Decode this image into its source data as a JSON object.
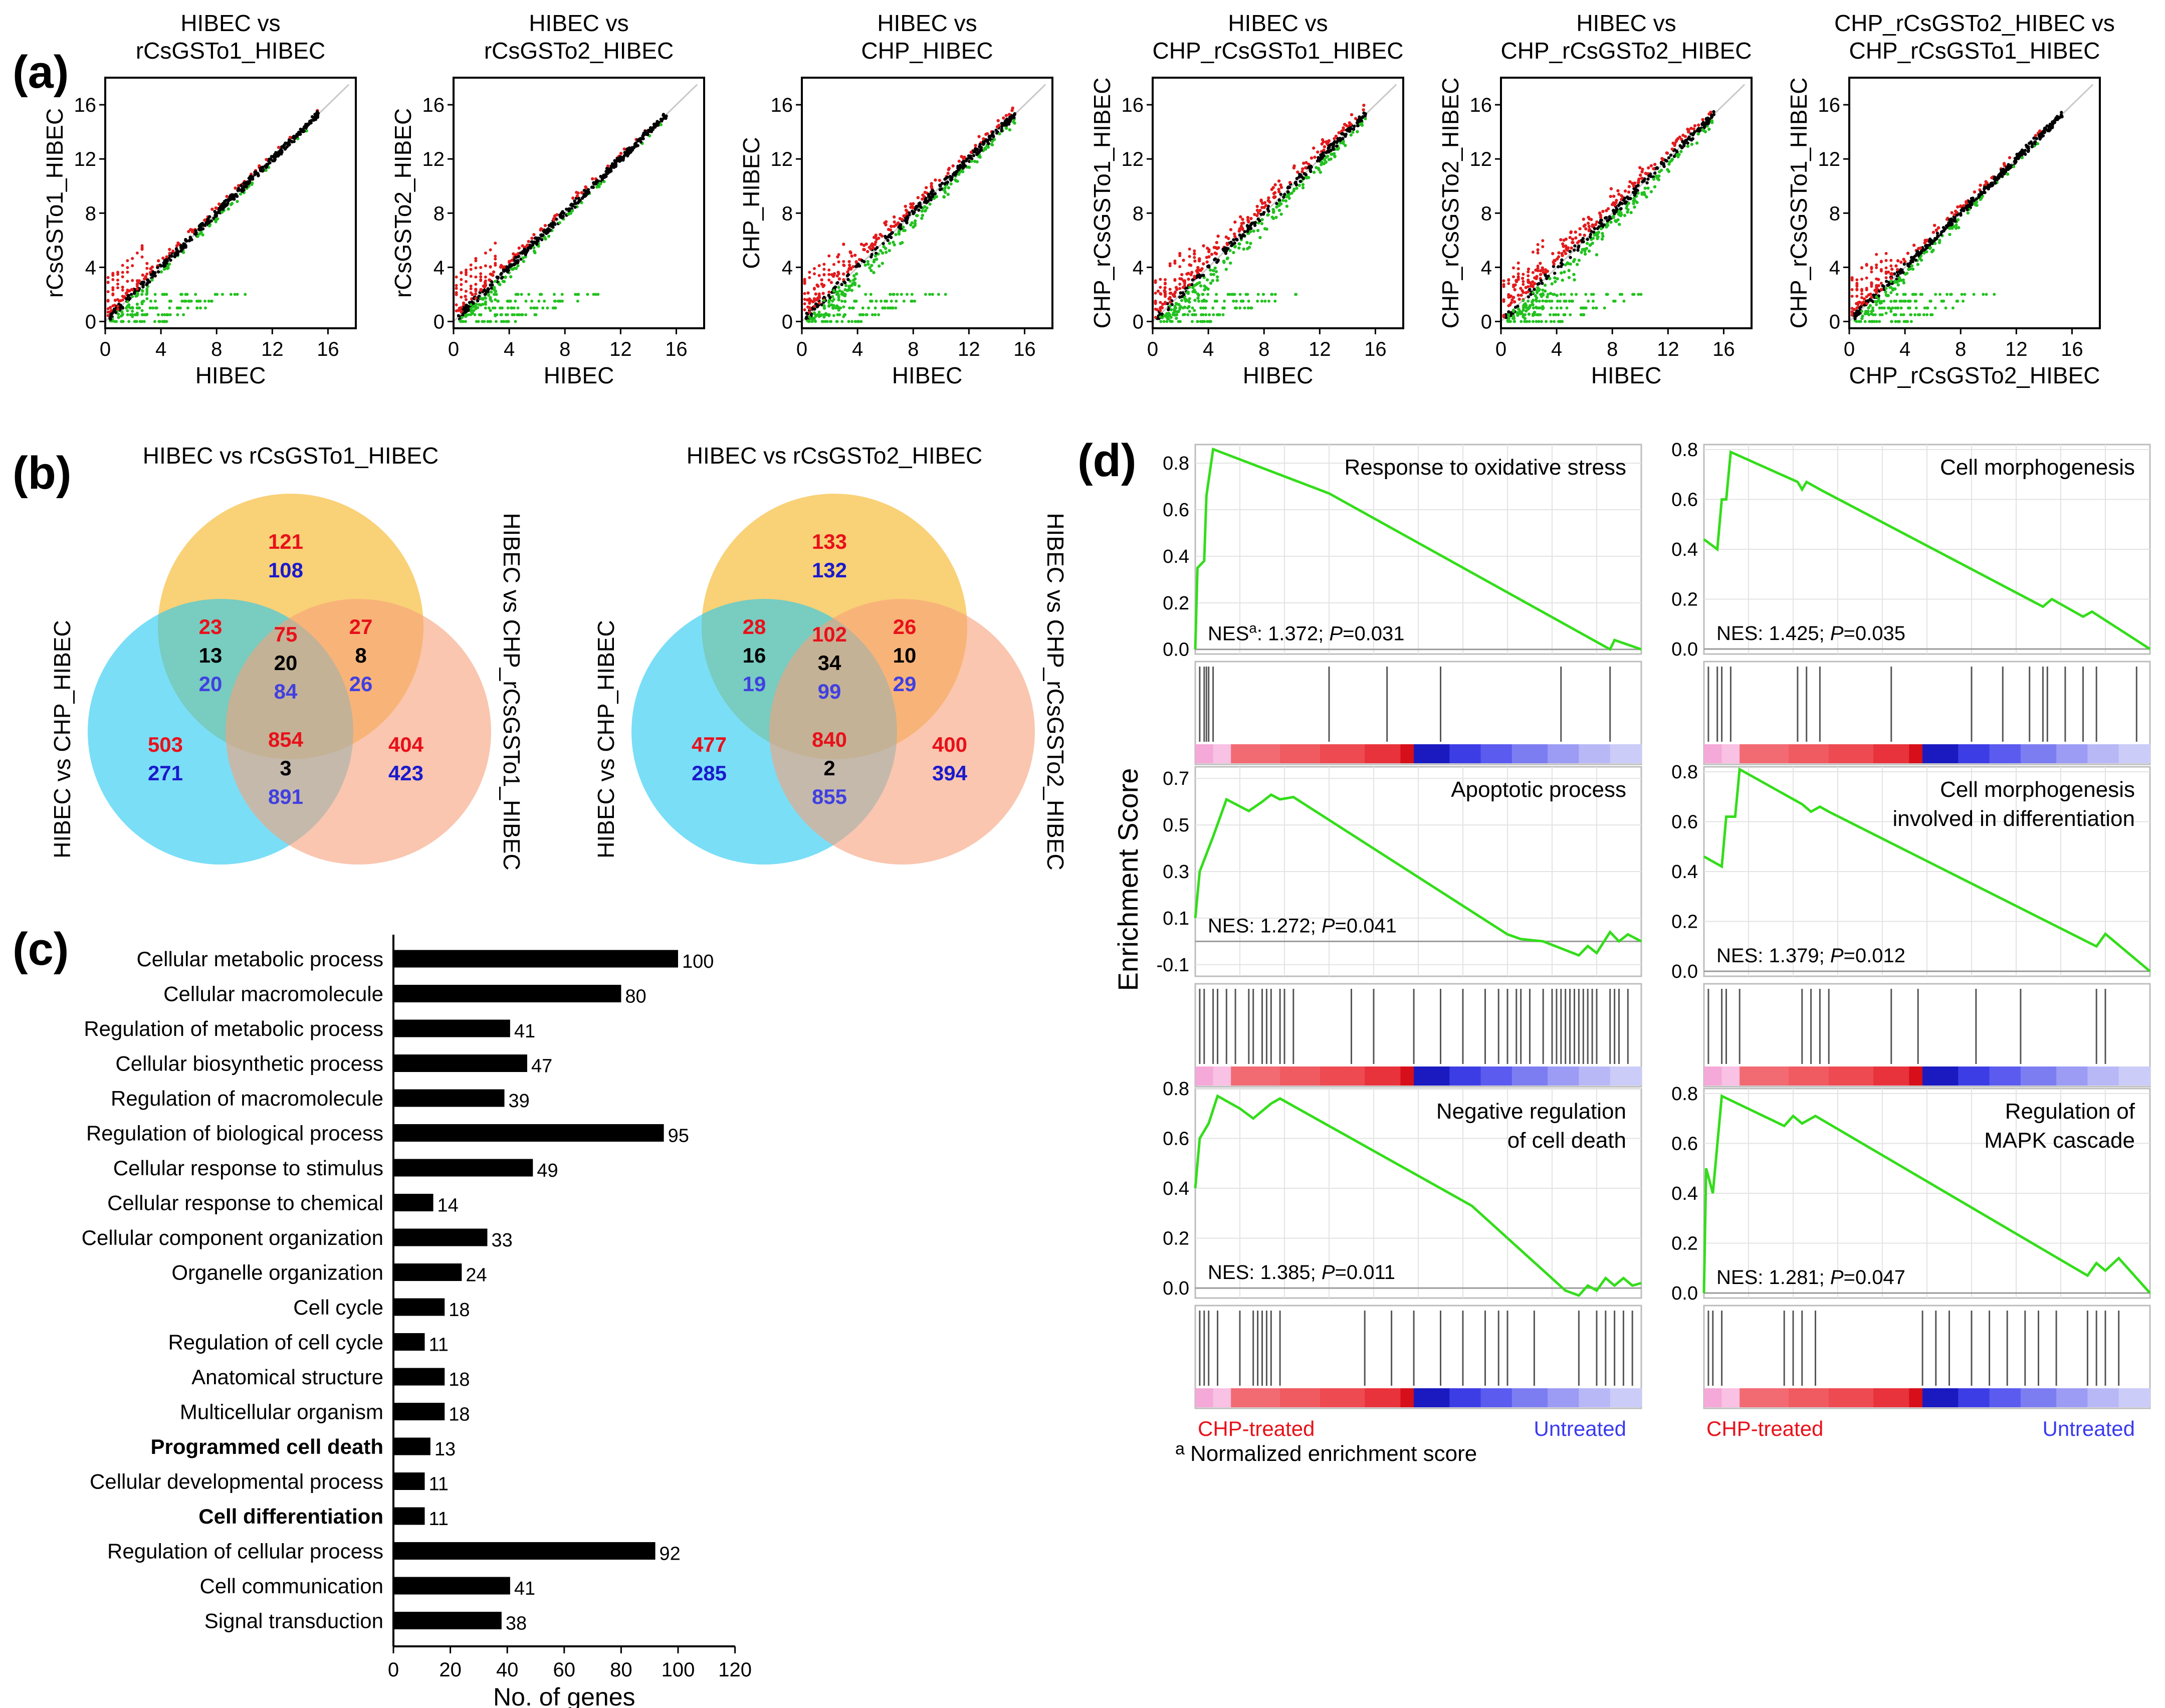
{
  "panel_labels": {
    "a": "(a)",
    "b": "(b)",
    "c": "(c)",
    "d": "(d)"
  },
  "colors": {
    "up": "#e31a1c",
    "down": "#22c11f",
    "black": "#000000",
    "gsea_line": "#33dd1a",
    "venn_a": "#f7c14a",
    "venn_b": "#22c8f2",
    "venn_c": "#f7a07a",
    "count_red": "#e8111a",
    "count_blue": "#1a1acc",
    "count_blue2": "#4040e0",
    "label_red": "#e8111a",
    "label_blue": "#3a3af0"
  },
  "scatter": {
    "panels": [
      {
        "title": [
          "HIBEC vs",
          "rCsGSTo1_HIBEC"
        ],
        "xlabel": "HIBEC",
        "ylabel": "rCsGSTo1_HIBEC",
        "spread": 0.55
      },
      {
        "title": [
          "HIBEC vs",
          "rCsGSTo2_HIBEC"
        ],
        "xlabel": "HIBEC",
        "ylabel": "rCsGSTo2_HIBEC",
        "spread": 0.6
      },
      {
        "title": [
          "HIBEC vs",
          "CHP_HIBEC"
        ],
        "xlabel": "HIBEC",
        "ylabel": "CHP_HIBEC",
        "spread": 1.3
      },
      {
        "title": [
          "HIBEC vs",
          "CHP_rCsGSTo1_HIBEC"
        ],
        "xlabel": "HIBEC",
        "ylabel": "CHP_rCsGSTo1_HIBEC",
        "spread": 1.5
      },
      {
        "title": [
          "HIBEC vs",
          "CHP_rCsGSTo2_HIBEC"
        ],
        "xlabel": "HIBEC",
        "ylabel": "CHP_rCsGSTo2_HIBEC",
        "spread": 1.5
      },
      {
        "title": [
          "CHP_rCsGSTo2_HIBEC vs",
          "CHP_rCsGSTo1_HIBEC"
        ],
        "xlabel": "CHP_rCsGSTo2_HIBEC",
        "ylabel": "CHP_rCsGSTo1_HIBEC",
        "spread": 0.7
      }
    ]
  },
  "venn": [
    {
      "top_label": "HIBEC vs rCsGSTo1_HIBEC",
      "left_label": "HIBEC vs CHP_HIBEC",
      "right_label": "HIBEC vs CHP_rCsGSTo1_HIBEC",
      "regions": {
        "a_only": [
          "121",
          "108"
        ],
        "ab": [
          "23",
          "13",
          "20"
        ],
        "ac": [
          "27",
          "8",
          "26"
        ],
        "abc": [
          "75",
          "20",
          "84"
        ],
        "b_only": [
          "503",
          "271"
        ],
        "c_only": [
          "404",
          "423"
        ],
        "bc": [
          "854",
          "3",
          "891"
        ]
      }
    },
    {
      "top_label": "HIBEC vs rCsGSTo2_HIBEC",
      "left_label": "HIBEC vs CHP_HIBEC",
      "right_label": "HIBEC vs CHP_rCsGSTo2_HIBEC",
      "regions": {
        "a_only": [
          "133",
          "132"
        ],
        "ab": [
          "28",
          "16",
          "19"
        ],
        "ac": [
          "26",
          "10",
          "29"
        ],
        "abc": [
          "102",
          "34",
          "99"
        ],
        "b_only": [
          "477",
          "285"
        ],
        "c_only": [
          "400",
          "394"
        ],
        "bc": [
          "840",
          "2",
          "855"
        ]
      }
    }
  ],
  "chart_data": [
    {
      "type": "scatter",
      "title": "HIBEC vs rCsGSTo1_HIBEC",
      "xlabel": "HIBEC",
      "ylabel": "rCsGSTo1_HIBEC",
      "xlim": [
        0,
        18
      ],
      "ylim": [
        -0.5,
        18
      ],
      "x_ticks": [
        "0",
        "4",
        "8",
        "12",
        "16"
      ],
      "y_ticks": [
        "0",
        "4",
        "8",
        "12",
        "16"
      ]
    },
    {
      "type": "bar",
      "orientation": "horizontal",
      "xlabel": "No. of genes",
      "xlim": [
        0,
        120
      ],
      "x_ticks": [
        "0",
        "20",
        "40",
        "60",
        "80",
        "100",
        "120"
      ],
      "categories": [
        "Cellular metabolic process",
        "Cellular macromolecule",
        "Regulation of metabolic process",
        "Cellular biosynthetic process",
        "Regulation of macromolecule",
        "Regulation of biological process",
        "Cellular response to stimulus",
        "Cellular response to chemical",
        "Cellular component organization",
        "Organelle organization",
        "Cell cycle",
        "Regulation of cell cycle",
        "Anatomical structure",
        "Multicellular organism",
        "Programmed cell death",
        "Cellular developmental process",
        "Cell differentiation",
        "Regulation of cellular process",
        "Cell communication",
        "Signal transduction"
      ],
      "values": [
        100,
        80,
        41,
        47,
        39,
        95,
        49,
        14,
        33,
        24,
        18,
        11,
        18,
        18,
        13,
        11,
        11,
        92,
        41,
        38
      ],
      "bold": [
        false,
        false,
        false,
        false,
        false,
        false,
        false,
        false,
        false,
        false,
        false,
        false,
        false,
        false,
        true,
        false,
        true,
        false,
        false,
        false
      ],
      "value_labels": [
        "100",
        "80",
        "41",
        "47",
        "39",
        "95",
        "49",
        "14",
        "33",
        "24",
        "18",
        "11",
        "18",
        "18",
        "13",
        "11",
        "11",
        "92",
        "41",
        "38"
      ]
    },
    {
      "type": "line",
      "subtype": "gsea",
      "ylabel": "Enrichment Score",
      "left_label": "CHP-treated",
      "right_label": "Untreated",
      "footnote": "Normalized enrichment score",
      "footnote_mark": "a",
      "panels": [
        {
          "title": [
            "Response to oxidative stress"
          ],
          "nes_prefix": "NES",
          "nes_sup": "a",
          "nes_value": ": 1.372; ",
          "p_label": "P",
          "p_value": "=0.031",
          "ylim": [
            -0.02,
            0.88
          ],
          "y_ticks": [
            "0.0",
            "0.2",
            "0.4",
            "0.6",
            "0.8"
          ],
          "y_tick_vals": [
            0,
            0.2,
            0.4,
            0.6,
            0.8
          ],
          "curve": [
            [
              0,
              0
            ],
            [
              0.005,
              0.35
            ],
            [
              0.02,
              0.38
            ],
            [
              0.025,
              0.66
            ],
            [
              0.04,
              0.86
            ],
            [
              0.3,
              0.67
            ],
            [
              0.93,
              0.0
            ],
            [
              0.94,
              0.04
            ],
            [
              1,
              0.0
            ]
          ],
          "hits": [
            0.01,
            0.02,
            0.025,
            0.03,
            0.04,
            0.3,
            0.43,
            0.55,
            0.82,
            0.93
          ]
        },
        {
          "title": [
            "Cell morphogenesis"
          ],
          "nes_prefix": "NES",
          "nes_sup": "",
          "nes_value": ": 1.425; ",
          "p_label": "P",
          "p_value": "=0.035",
          "ylim": [
            -0.02,
            0.82
          ],
          "y_ticks": [
            "0.0",
            "0.2",
            "0.4",
            "0.6",
            "0.8"
          ],
          "y_tick_vals": [
            0,
            0.2,
            0.4,
            0.6,
            0.8
          ],
          "curve": [
            [
              0,
              0.44
            ],
            [
              0.03,
              0.4
            ],
            [
              0.04,
              0.6
            ],
            [
              0.05,
              0.6
            ],
            [
              0.06,
              0.79
            ],
            [
              0.21,
              0.67
            ],
            [
              0.22,
              0.64
            ],
            [
              0.23,
              0.67
            ],
            [
              0.26,
              0.64
            ],
            [
              0.76,
              0.17
            ],
            [
              0.78,
              0.2
            ],
            [
              0.85,
              0.13
            ],
            [
              0.87,
              0.15
            ],
            [
              1,
              0.0
            ]
          ],
          "hits": [
            0.01,
            0.03,
            0.04,
            0.06,
            0.21,
            0.23,
            0.26,
            0.42,
            0.6,
            0.67,
            0.73,
            0.76,
            0.77,
            0.81,
            0.85,
            0.88,
            0.97
          ]
        },
        {
          "title": [
            "Apoptotic process"
          ],
          "nes_prefix": "NES",
          "nes_sup": "",
          "nes_value": ": 1.272; ",
          "p_label": "P",
          "p_value": "=0.041",
          "ylim": [
            -0.15,
            0.75
          ],
          "y_ticks": [
            "-0.1",
            "0.1",
            "0.3",
            "0.5",
            "0.7"
          ],
          "y_tick_vals": [
            -0.1,
            0.1,
            0.3,
            0.5,
            0.7
          ],
          "curve": [
            [
              0,
              0.1
            ],
            [
              0.01,
              0.3
            ],
            [
              0.04,
              0.45
            ],
            [
              0.07,
              0.61
            ],
            [
              0.12,
              0.56
            ],
            [
              0.15,
              0.6
            ],
            [
              0.17,
              0.63
            ],
            [
              0.19,
              0.61
            ],
            [
              0.22,
              0.62
            ],
            [
              0.7,
              0.03
            ],
            [
              0.73,
              0.01
            ],
            [
              0.78,
              0.0
            ],
            [
              0.86,
              -0.06
            ],
            [
              0.88,
              -0.02
            ],
            [
              0.9,
              -0.05
            ],
            [
              0.93,
              0.04
            ],
            [
              0.95,
              0.0
            ],
            [
              0.97,
              0.03
            ],
            [
              1,
              0.0
            ]
          ],
          "hits": [
            0.01,
            0.02,
            0.04,
            0.05,
            0.07,
            0.09,
            0.12,
            0.13,
            0.15,
            0.16,
            0.17,
            0.19,
            0.2,
            0.22,
            0.35,
            0.4,
            0.49,
            0.55,
            0.6,
            0.65,
            0.68,
            0.7,
            0.72,
            0.73,
            0.75,
            0.78,
            0.8,
            0.81,
            0.82,
            0.83,
            0.84,
            0.85,
            0.86,
            0.87,
            0.88,
            0.89,
            0.9,
            0.93,
            0.94,
            0.95,
            0.97
          ]
        },
        {
          "title": [
            "Cell morphogenesis",
            "involved in differentiation"
          ],
          "nes_prefix": "NES",
          "nes_sup": "",
          "nes_value": ": 1.379; ",
          "p_label": "P",
          "p_value": "=0.012",
          "ylim": [
            -0.02,
            0.82
          ],
          "y_ticks": [
            "0.0",
            "0.2",
            "0.4",
            "0.6",
            "0.8"
          ],
          "y_tick_vals": [
            0,
            0.2,
            0.4,
            0.6,
            0.8
          ],
          "curve": [
            [
              0,
              0.46
            ],
            [
              0.04,
              0.42
            ],
            [
              0.05,
              0.62
            ],
            [
              0.07,
              0.62
            ],
            [
              0.08,
              0.81
            ],
            [
              0.22,
              0.67
            ],
            [
              0.24,
              0.64
            ],
            [
              0.26,
              0.66
            ],
            [
              0.28,
              0.64
            ],
            [
              0.88,
              0.1
            ],
            [
              0.9,
              0.15
            ],
            [
              1,
              0.0
            ]
          ],
          "hits": [
            0.01,
            0.04,
            0.05,
            0.08,
            0.22,
            0.24,
            0.26,
            0.28,
            0.42,
            0.48,
            0.61,
            0.71,
            0.88,
            0.9
          ]
        },
        {
          "title": [
            "Negative regulation",
            "of cell death"
          ],
          "nes_prefix": "NES",
          "nes_sup": "",
          "nes_value": ": 1.385; ",
          "p_label": "P",
          "p_value": "=0.011",
          "ylim": [
            -0.04,
            0.8
          ],
          "y_ticks": [
            "0.0",
            "0.2",
            "0.4",
            "0.6",
            "0.8"
          ],
          "y_tick_vals": [
            0,
            0.2,
            0.4,
            0.6,
            0.8
          ],
          "curve": [
            [
              0,
              0.4
            ],
            [
              0.01,
              0.6
            ],
            [
              0.03,
              0.66
            ],
            [
              0.05,
              0.77
            ],
            [
              0.1,
              0.72
            ],
            [
              0.13,
              0.68
            ],
            [
              0.17,
              0.74
            ],
            [
              0.19,
              0.76
            ],
            [
              0.62,
              0.33
            ],
            [
              0.83,
              -0.01
            ],
            [
              0.86,
              -0.03
            ],
            [
              0.88,
              0.01
            ],
            [
              0.9,
              -0.01
            ],
            [
              0.92,
              0.04
            ],
            [
              0.94,
              0.01
            ],
            [
              0.96,
              0.04
            ],
            [
              0.98,
              0.01
            ],
            [
              1,
              0.02
            ]
          ],
          "hits": [
            0.01,
            0.02,
            0.03,
            0.05,
            0.1,
            0.13,
            0.14,
            0.15,
            0.16,
            0.17,
            0.19,
            0.38,
            0.44,
            0.49,
            0.55,
            0.6,
            0.65,
            0.68,
            0.7,
            0.76,
            0.86,
            0.9,
            0.92,
            0.94,
            0.96,
            0.98
          ]
        },
        {
          "title": [
            "Regulation of",
            "MAPK cascade"
          ],
          "nes_prefix": "NES",
          "nes_sup": "",
          "nes_value": ": 1.281; ",
          "p_label": "P",
          "p_value": "=0.047",
          "ylim": [
            -0.02,
            0.82
          ],
          "y_ticks": [
            "0.0",
            "0.2",
            "0.4",
            "0.6",
            "0.8"
          ],
          "y_tick_vals": [
            0,
            0.2,
            0.4,
            0.6,
            0.8
          ],
          "curve": [
            [
              0,
              0.0
            ],
            [
              0.005,
              0.5
            ],
            [
              0.02,
              0.4
            ],
            [
              0.04,
              0.79
            ],
            [
              0.18,
              0.67
            ],
            [
              0.2,
              0.71
            ],
            [
              0.22,
              0.68
            ],
            [
              0.25,
              0.71
            ],
            [
              0.86,
              0.07
            ],
            [
              0.88,
              0.12
            ],
            [
              0.9,
              0.09
            ],
            [
              0.93,
              0.14
            ],
            [
              1,
              0.0
            ]
          ],
          "hits": [
            0.01,
            0.02,
            0.04,
            0.18,
            0.2,
            0.22,
            0.25,
            0.49,
            0.52,
            0.55,
            0.6,
            0.64,
            0.68,
            0.72,
            0.75,
            0.79,
            0.86,
            0.88,
            0.9,
            0.93
          ]
        }
      ]
    }
  ]
}
